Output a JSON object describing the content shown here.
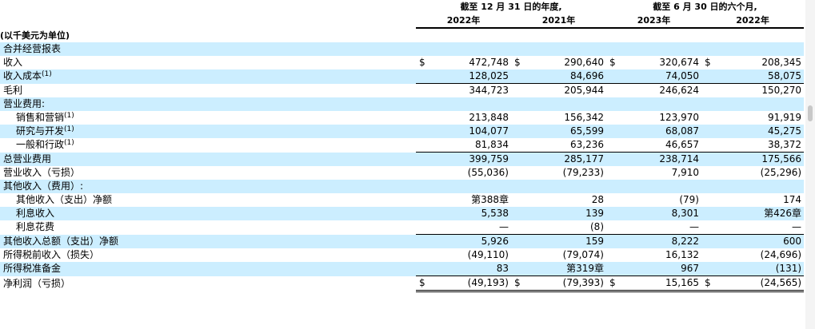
{
  "header": {
    "group_fy": "截至 12 月 31 日的年度,",
    "group_h1": "截至 6 月 30 日的六个月,",
    "col1": "2022年",
    "col2": "2021年",
    "col3": "2023年",
    "col4": "2022年",
    "unit_note": "(以千美元为单位)"
  },
  "rows": [
    {
      "label": "合并经营报表",
      "sup": "",
      "cells": []
    },
    {
      "label": "收入",
      "sup": "",
      "cells": [
        {
          "c": "$",
          "v": "472,748"
        },
        {
          "c": "$",
          "v": "290,640"
        },
        {
          "c": "$",
          "v": "320,674"
        },
        {
          "c": "$",
          "v": "208,345"
        }
      ]
    },
    {
      "label": "收入成本",
      "sup": "(1)",
      "cells": [
        {
          "c": "",
          "v": "128,025"
        },
        {
          "c": "",
          "v": "84,696"
        },
        {
          "c": "",
          "v": "74,050"
        },
        {
          "c": "",
          "v": "58,075"
        }
      ]
    },
    {
      "label": "毛利",
      "sup": "",
      "cells": [
        {
          "c": "",
          "v": "344,723"
        },
        {
          "c": "",
          "v": "205,944"
        },
        {
          "c": "",
          "v": "246,624"
        },
        {
          "c": "",
          "v": "150,270"
        }
      ]
    },
    {
      "label": "营业费用:",
      "sup": "",
      "cells": []
    },
    {
      "label": "销售和营销",
      "sup": "(1)",
      "cells": [
        {
          "c": "",
          "v": "213,848"
        },
        {
          "c": "",
          "v": "156,342"
        },
        {
          "c": "",
          "v": "123,970"
        },
        {
          "c": "",
          "v": "91,919"
        }
      ]
    },
    {
      "label": "研究与开发",
      "sup": "(1)",
      "cells": [
        {
          "c": "",
          "v": "104,077"
        },
        {
          "c": "",
          "v": "65,599"
        },
        {
          "c": "",
          "v": "68,087"
        },
        {
          "c": "",
          "v": "45,275"
        }
      ]
    },
    {
      "label": "一般和行政",
      "sup": "(1)",
      "cells": [
        {
          "c": "",
          "v": "81,834"
        },
        {
          "c": "",
          "v": "63,236"
        },
        {
          "c": "",
          "v": "46,657"
        },
        {
          "c": "",
          "v": "38,372"
        }
      ]
    },
    {
      "label": "总营业费用",
      "sup": "",
      "cells": [
        {
          "c": "",
          "v": "399,759"
        },
        {
          "c": "",
          "v": "285,177"
        },
        {
          "c": "",
          "v": "238,714"
        },
        {
          "c": "",
          "v": "175,566"
        }
      ]
    },
    {
      "label": "营业收入（亏损）",
      "sup": "",
      "cells": [
        {
          "c": "",
          "v": "(55,036)"
        },
        {
          "c": "",
          "v": "(79,233)"
        },
        {
          "c": "",
          "v": "7,910"
        },
        {
          "c": "",
          "v": "(25,296)"
        }
      ]
    },
    {
      "label": "其他收入（费用）:",
      "sup": "",
      "cells": []
    },
    {
      "label": "其他收入（支出）净额",
      "sup": "",
      "cells": [
        {
          "c": "",
          "v": "第388章"
        },
        {
          "c": "",
          "v": "28"
        },
        {
          "c": "",
          "v": "(79)"
        },
        {
          "c": "",
          "v": "174"
        }
      ]
    },
    {
      "label": "利息收入",
      "sup": "",
      "cells": [
        {
          "c": "",
          "v": "5,538"
        },
        {
          "c": "",
          "v": "139"
        },
        {
          "c": "",
          "v": "8,301"
        },
        {
          "c": "",
          "v": "第426章"
        }
      ]
    },
    {
      "label": "利息花费",
      "sup": "",
      "cells": [
        {
          "c": "",
          "v": "—"
        },
        {
          "c": "",
          "v": "(8)"
        },
        {
          "c": "",
          "v": "—"
        },
        {
          "c": "",
          "v": "—"
        }
      ]
    },
    {
      "label": "其他收入总额（支出）净额",
      "sup": "",
      "cells": [
        {
          "c": "",
          "v": "5,926"
        },
        {
          "c": "",
          "v": "159"
        },
        {
          "c": "",
          "v": "8,222"
        },
        {
          "c": "",
          "v": "600"
        }
      ]
    },
    {
      "label": "所得税前收入（损失）",
      "sup": "",
      "cells": [
        {
          "c": "",
          "v": "(49,110)"
        },
        {
          "c": "",
          "v": "(79,074)"
        },
        {
          "c": "",
          "v": "16,132"
        },
        {
          "c": "",
          "v": "(24,696)"
        }
      ]
    },
    {
      "label": "所得税准备金",
      "sup": "",
      "cells": [
        {
          "c": "",
          "v": "83"
        },
        {
          "c": "",
          "v": "第319章"
        },
        {
          "c": "",
          "v": "967"
        },
        {
          "c": "",
          "v": "(131)"
        }
      ]
    },
    {
      "label": "净利润（亏损）",
      "sup": "",
      "cells": [
        {
          "c": "$",
          "v": "(49,193)"
        },
        {
          "c": "$",
          "v": "(79,393)"
        },
        {
          "c": "$",
          "v": "15,165"
        },
        {
          "c": "$",
          "v": "(24,565)"
        }
      ]
    }
  ]
}
